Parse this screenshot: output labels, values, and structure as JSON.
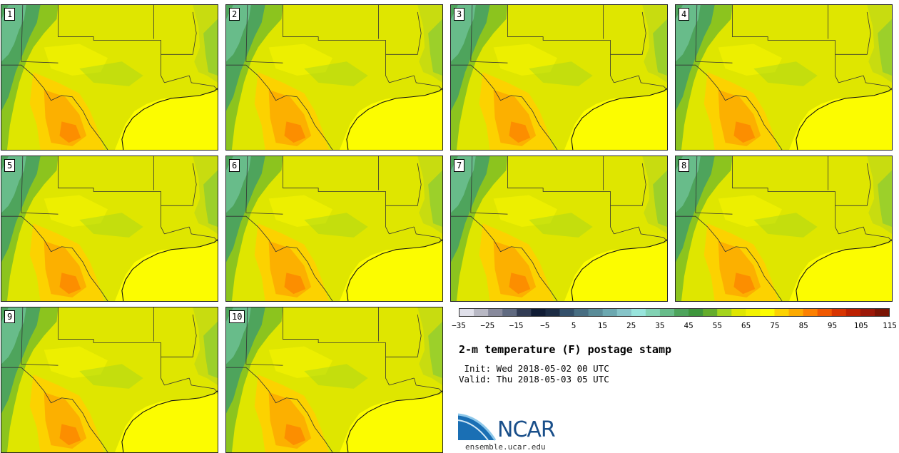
{
  "panels": [
    {
      "label": "1"
    },
    {
      "label": "2"
    },
    {
      "label": "3"
    },
    {
      "label": "4"
    },
    {
      "label": "5"
    },
    {
      "label": "6"
    },
    {
      "label": "7"
    },
    {
      "label": "8"
    },
    {
      "label": "9"
    },
    {
      "label": "10"
    }
  ],
  "colorbar": {
    "colors": [
      "#e0e0ea",
      "#b8b8c4",
      "#888a9c",
      "#606a80",
      "#323c54",
      "#101c34",
      "#1c2c44",
      "#34506a",
      "#486e82",
      "#5a8c98",
      "#6ca8b0",
      "#86c4c8",
      "#98e4dc",
      "#82d2b4",
      "#68bc8a",
      "#4ea45c",
      "#3e963c",
      "#64ac2c",
      "#a4d41c",
      "#dfe600",
      "#f2f200",
      "#fcfc00",
      "#fcd200",
      "#fcaa00",
      "#fc8000",
      "#f05800",
      "#d83400",
      "#bc2000",
      "#9c1808",
      "#7a1404"
    ],
    "tick_labels": [
      "−35",
      "−25",
      "−15",
      "−5",
      "5",
      "15",
      "25",
      "35",
      "45",
      "55",
      "65",
      "75",
      "85",
      "95",
      "105",
      "115"
    ]
  },
  "title": "2-m temperature (F) postage stamp",
  "init": " Init: Wed 2018-05-02 00 UTC",
  "valid": "Valid: Thu 2018-05-03 05 UTC",
  "logo": {
    "text": "NCAR",
    "url": "ensemble.ucar.edu"
  }
}
